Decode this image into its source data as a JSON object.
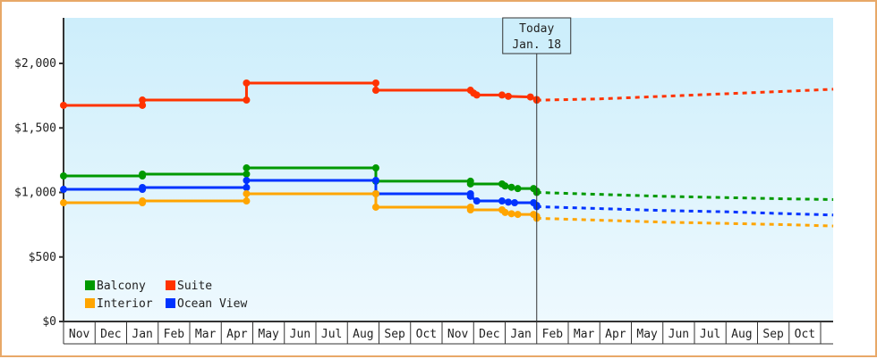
{
  "chart_data": {
    "type": "line",
    "title": "",
    "xlabel": "",
    "ylabel": "",
    "ylim": [
      0,
      2350
    ],
    "y_ticks": [
      "$0",
      "$500",
      "$1,000",
      "$1,500",
      "$2,000"
    ],
    "y_tick_values": [
      0,
      500,
      1000,
      1500,
      2000
    ],
    "x_ticks": [
      "Nov",
      "Dec",
      "Jan",
      "Feb",
      "Mar",
      "Apr",
      "May",
      "Jun",
      "Jul",
      "Aug",
      "Sep",
      "Oct",
      "Nov",
      "Dec",
      "Jan",
      "Feb",
      "Mar",
      "Apr",
      "May",
      "Jun",
      "Jul",
      "Aug",
      "Sep",
      "Oct"
    ],
    "today_marker": {
      "line1": "Today",
      "line2": "Jan. 18"
    },
    "legend": [
      {
        "name": "Balcony",
        "color": "#009900"
      },
      {
        "name": "Suite",
        "color": "#ff3300"
      },
      {
        "name": "Interior",
        "color": "#ffa500"
      },
      {
        "name": "Ocean View",
        "color": "#0033ff"
      }
    ],
    "series": [
      {
        "name": "Suite",
        "color": "#ff3300",
        "history": [
          [
            0,
            1675
          ],
          [
            2.5,
            1675
          ],
          [
            2.5,
            1716
          ],
          [
            5.8,
            1716
          ],
          [
            5.8,
            1848
          ],
          [
            9.9,
            1848
          ],
          [
            9.9,
            1792
          ],
          [
            12.9,
            1792
          ],
          [
            13.0,
            1770
          ],
          [
            13.1,
            1755
          ],
          [
            13.9,
            1755
          ],
          [
            14.1,
            1745
          ],
          [
            14.8,
            1740
          ],
          [
            15.0,
            1720
          ],
          [
            15.0,
            1715
          ]
        ],
        "forecast": [
          [
            15.0,
            1715
          ],
          [
            17,
            1725
          ],
          [
            19,
            1745
          ],
          [
            21,
            1765
          ],
          [
            23,
            1785
          ],
          [
            24.4,
            1800
          ]
        ]
      },
      {
        "name": "Balcony",
        "color": "#009900",
        "history": [
          [
            0,
            1128
          ],
          [
            2.5,
            1128
          ],
          [
            2.5,
            1142
          ],
          [
            5.8,
            1142
          ],
          [
            5.8,
            1190
          ],
          [
            9.9,
            1190
          ],
          [
            9.9,
            1087
          ],
          [
            12.9,
            1087
          ],
          [
            12.9,
            1066
          ],
          [
            13.9,
            1066
          ],
          [
            14.0,
            1050
          ],
          [
            14.2,
            1040
          ],
          [
            14.4,
            1030
          ],
          [
            14.9,
            1030
          ],
          [
            15.0,
            1010
          ],
          [
            15.0,
            1000
          ]
        ],
        "forecast": [
          [
            15.0,
            1000
          ],
          [
            17,
            985
          ],
          [
            19,
            970
          ],
          [
            21,
            960
          ],
          [
            23,
            950
          ],
          [
            24.4,
            945
          ]
        ]
      },
      {
        "name": "Ocean View",
        "color": "#0033ff",
        "history": [
          [
            0,
            1024
          ],
          [
            2.5,
            1024
          ],
          [
            2.5,
            1038
          ],
          [
            5.8,
            1038
          ],
          [
            5.8,
            1093
          ],
          [
            9.9,
            1093
          ],
          [
            9.9,
            990
          ],
          [
            12.9,
            990
          ],
          [
            12.9,
            970
          ],
          [
            13.1,
            934
          ],
          [
            13.9,
            934
          ],
          [
            14.1,
            925
          ],
          [
            14.3,
            920
          ],
          [
            14.9,
            920
          ],
          [
            15.0,
            900
          ],
          [
            15.0,
            890
          ]
        ],
        "forecast": [
          [
            15.0,
            890
          ],
          [
            17,
            875
          ],
          [
            19,
            860
          ],
          [
            21,
            850
          ],
          [
            23,
            835
          ],
          [
            24.4,
            825
          ]
        ]
      },
      {
        "name": "Interior",
        "color": "#ffa500",
        "history": [
          [
            0,
            920
          ],
          [
            2.5,
            920
          ],
          [
            2.5,
            934
          ],
          [
            5.8,
            934
          ],
          [
            5.8,
            990
          ],
          [
            9.9,
            990
          ],
          [
            9.9,
            886
          ],
          [
            12.9,
            886
          ],
          [
            12.9,
            865
          ],
          [
            13.9,
            865
          ],
          [
            14.0,
            845
          ],
          [
            14.2,
            835
          ],
          [
            14.4,
            830
          ],
          [
            14.9,
            830
          ],
          [
            15.0,
            815
          ],
          [
            15.0,
            800
          ]
        ],
        "forecast": [
          [
            15.0,
            800
          ],
          [
            17,
            785
          ],
          [
            19,
            770
          ],
          [
            21,
            760
          ],
          [
            23,
            750
          ],
          [
            24.4,
            740
          ]
        ]
      }
    ]
  }
}
